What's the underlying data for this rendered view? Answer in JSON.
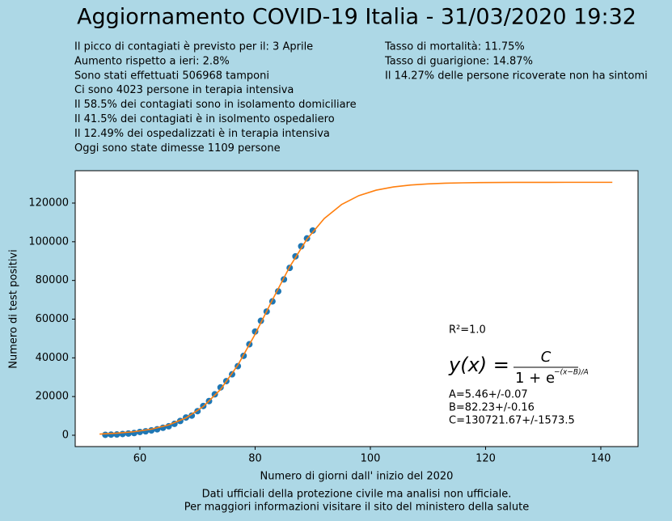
{
  "header": {
    "title": "Aggiornamento COVID-19 Italia - 31/03/2020 19:32"
  },
  "info_left": [
    "Il picco di contagiati è previsto per il: 3 Aprile",
    "Aumento rispetto a ieri: 2.8%",
    "Sono stati effettuati 506968 tamponi",
    "Ci sono 4023 persone in terapia intensiva",
    "Il 58.5% dei contagiati sono in isolamento domiciliare",
    "Il 41.5% dei contagiati è in isolmento ospedaliero",
    "Il 12.49% dei ospedalizzati è in terapia intensiva",
    "Oggi sono state dimesse 1109 persone"
  ],
  "info_right": [
    "Tasso di mortalità: 11.75%",
    "Tasso di guarigione: 14.87%",
    "Il 14.27% delle persone ricoverate non ha sintomi"
  ],
  "footer": [
    "Dati ufficiali della protezione civile ma analisi non ufficiale.",
    "Per maggiori informazioni visitare il sito del ministero della salute"
  ],
  "chart_data": {
    "type": "scatter",
    "x_label": "Numero di giorni dall' inizio del 2020",
    "y_label": "Numero di test positivi",
    "xlim": [
      48.77,
      146.46
    ],
    "xticks": [
      60,
      80,
      100,
      120,
      140
    ],
    "ylim": [
      -5854,
      136725
    ],
    "yticks": [
      0,
      20000,
      40000,
      60000,
      80000,
      100000,
      120000
    ],
    "series": [
      {
        "type": "scatter",
        "color": "#1f77b4",
        "x": [
          54,
          55,
          56,
          57,
          58,
          59,
          60,
          61,
          62,
          63,
          64,
          65,
          66,
          67,
          68,
          69,
          70,
          71,
          72,
          73,
          74,
          75,
          76,
          77,
          78,
          79,
          80,
          81,
          82,
          83,
          84,
          85,
          86,
          87,
          88,
          89,
          90
        ],
        "values": [
          229,
          322,
          400,
          650,
          888,
          1128,
          1694,
          2036,
          2502,
          3089,
          3858,
          4636,
          5883,
          7375,
          9172,
          10149,
          12462,
          15113,
          17660,
          21157,
          24747,
          27980,
          31506,
          35713,
          41035,
          47021,
          53578,
          59138,
          63927,
          69176,
          74386,
          80539,
          86498,
          92472,
          97689,
          101739,
          105792
        ]
      },
      {
        "type": "line",
        "color": "#ff7f0e",
        "x": [
          53,
          56,
          59,
          62,
          65,
          68,
          71,
          74,
          77,
          80,
          83,
          86,
          89,
          92,
          95,
          98,
          101,
          104,
          107,
          110,
          113,
          116,
          119,
          122,
          125,
          128,
          131,
          134,
          137,
          140,
          142
        ],
        "values": [
          616,
          1063,
          1829,
          3139,
          5342,
          8984,
          14818,
          23707,
          36251,
          52205,
          69961,
          87055,
          101382,
          112006,
          119227,
          123826,
          126656,
          128340,
          129337,
          129919,
          130257,
          130453,
          130566,
          130632,
          130670,
          130692,
          130704,
          130711,
          130715,
          130717,
          130718
        ]
      }
    ],
    "annotations": {
      "r_squared": "R²=1.0",
      "formula": {
        "lhs": "y(x) =",
        "numerator": "C",
        "denominator": "1 + e",
        "exponent": "−(x−B)/A"
      },
      "params": [
        "A=5.46+/-0.07",
        "B=82.23+/-0.16",
        "C=130721.67+/-1573.5"
      ]
    }
  }
}
